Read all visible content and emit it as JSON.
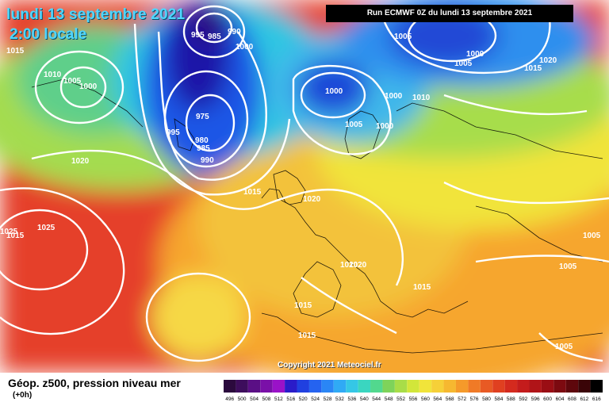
{
  "header": {
    "date": "lundi 13 septembre 2021",
    "local_time": "2:00 locale",
    "run": "Run ECMWF 0Z du lundi 13 septembre 2021"
  },
  "footer": {
    "copyright": "Copyright 2021 Meteociel.fr",
    "legend_title": "Géop. z500, pression niveau mer",
    "legend_subtitle": "(+0h)"
  },
  "colors": {
    "deep_low": "#1a14a8",
    "low": "#2a6ef5",
    "cyan": "#35c7e6",
    "green": "#7ed35a",
    "yellow": "#f1e43a",
    "orange": "#f59a2a",
    "red": "#e8402a",
    "background_deep_red": "#d92a22"
  },
  "scale": [
    "496",
    "500",
    "504",
    "508",
    "512",
    "516",
    "520",
    "524",
    "528",
    "532",
    "536",
    "540",
    "544",
    "548",
    "552",
    "556",
    "560",
    "564",
    "568",
    "572",
    "576",
    "580",
    "584",
    "588",
    "592",
    "596",
    "600",
    "604",
    "608",
    "612",
    "616"
  ],
  "pressure_labels": [
    "1015",
    "1010",
    "1005",
    "1000",
    "995",
    "985",
    "990",
    "1000",
    "1015",
    "1005",
    "1000",
    "1005",
    "1000",
    "1020",
    "1015",
    "1010",
    "1005",
    "1000",
    "1000",
    "1020",
    "995",
    "975",
    "980",
    "985",
    "990",
    "1015",
    "1020",
    "1025",
    "1025",
    "1020",
    "1020",
    "1015",
    "1015",
    "1015",
    "1005",
    "1005",
    "1005"
  ]
}
